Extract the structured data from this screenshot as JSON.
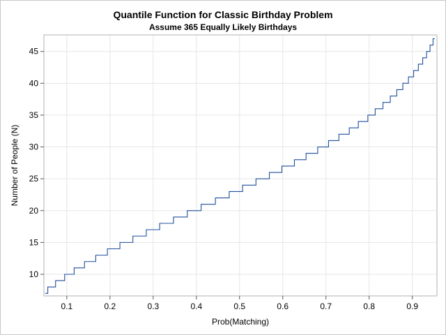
{
  "chart_data": {
    "type": "line",
    "title": "Quantile Function for Classic Birthday Problem",
    "subtitle": "Assume 365 Equally Likely Birthdays",
    "xlabel": "Prob(Matching)",
    "ylabel": "Number of People (N)",
    "xlim": [
      0.047,
      0.957
    ],
    "ylim": [
      6.6,
      47.6
    ],
    "x_ticks": [
      0.1,
      0.2,
      0.3,
      0.4,
      0.5,
      0.6,
      0.7,
      0.8,
      0.9
    ],
    "y_ticks": [
      10,
      15,
      20,
      25,
      30,
      35,
      40,
      45
    ],
    "grid": true,
    "line_color": "#1f4e9c",
    "series": [
      {
        "step": "post",
        "x": [
          0.05,
          0.056,
          0.074,
          0.095,
          0.117,
          0.141,
          0.167,
          0.194,
          0.223,
          0.253,
          0.284,
          0.315,
          0.347,
          0.379,
          0.411,
          0.444,
          0.476,
          0.507,
          0.538,
          0.569,
          0.598,
          0.627,
          0.654,
          0.681,
          0.706,
          0.73,
          0.754,
          0.775,
          0.797,
          0.814,
          0.832,
          0.849,
          0.864,
          0.878,
          0.891,
          0.903,
          0.914,
          0.924,
          0.933,
          0.941,
          0.948,
          0.952
        ],
        "y": [
          7,
          8,
          9,
          10,
          11,
          12,
          13,
          14,
          15,
          16,
          17,
          18,
          19,
          20,
          21,
          22,
          23,
          24,
          25,
          26,
          27,
          28,
          29,
          30,
          31,
          32,
          33,
          34,
          35,
          36,
          37,
          38,
          39,
          40,
          41,
          42,
          43,
          44,
          45,
          46,
          47,
          47
        ]
      }
    ]
  }
}
